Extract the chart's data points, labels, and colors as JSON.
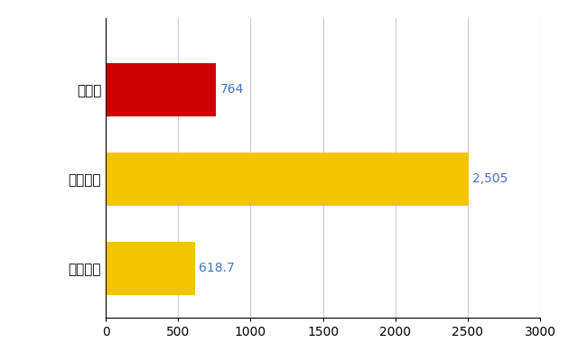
{
  "categories": [
    "全国平均",
    "全国最大",
    "長野県"
  ],
  "values": [
    618.7,
    2505,
    764
  ],
  "bar_colors": [
    "#F5C400",
    "#F5C400",
    "#CC0000"
  ],
  "value_labels": [
    "618.7",
    "2,505",
    "764"
  ],
  "label_color": "#4472C4",
  "xlim": [
    0,
    3000
  ],
  "xticks": [
    0,
    500,
    1000,
    1500,
    2000,
    2500,
    3000
  ],
  "grid_color": "#CCCCCC",
  "background_color": "#FFFFFF",
  "bar_height": 0.6,
  "label_fontsize": 10,
  "tick_fontsize": 10,
  "ylabel_fontsize": 11
}
